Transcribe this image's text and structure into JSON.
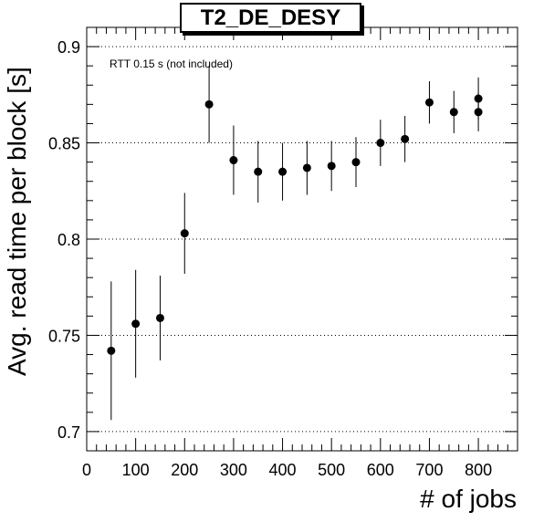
{
  "chart_data": {
    "type": "scatter",
    "title": "T2_DE_DESY",
    "xlabel": "# of jobs",
    "ylabel": "Avg. read time per block [s]",
    "annotation": "RTT 0.15 s (not included)",
    "xlim": [
      0,
      880
    ],
    "ylim": [
      0.69,
      0.91
    ],
    "x_ticks": [
      0,
      100,
      200,
      300,
      400,
      500,
      600,
      700,
      800
    ],
    "x_tick_labels": [
      "0",
      "100",
      "200",
      "300",
      "400",
      "500",
      "600",
      "700",
      "800"
    ],
    "y_ticks": [
      0.7,
      0.75,
      0.8,
      0.85,
      0.9
    ],
    "y_tick_labels": [
      "0.7",
      "0.75",
      "0.8",
      "0.85",
      "0.9"
    ],
    "grid": "horizontal dotted at major y ticks",
    "marker": "filled circle",
    "marker_color": "#000000",
    "points": [
      {
        "x": 50,
        "y": 0.742,
        "err_low": 0.036,
        "err_high": 0.036
      },
      {
        "x": 100,
        "y": 0.756,
        "err_low": 0.028,
        "err_high": 0.028
      },
      {
        "x": 150,
        "y": 0.759,
        "err_low": 0.022,
        "err_high": 0.022
      },
      {
        "x": 200,
        "y": 0.803,
        "err_low": 0.021,
        "err_high": 0.021
      },
      {
        "x": 250,
        "y": 0.87,
        "err_low": 0.02,
        "err_high": 0.02
      },
      {
        "x": 300,
        "y": 0.841,
        "err_low": 0.018,
        "err_high": 0.018
      },
      {
        "x": 350,
        "y": 0.835,
        "err_low": 0.016,
        "err_high": 0.016
      },
      {
        "x": 400,
        "y": 0.835,
        "err_low": 0.015,
        "err_high": 0.015
      },
      {
        "x": 450,
        "y": 0.837,
        "err_low": 0.014,
        "err_high": 0.014
      },
      {
        "x": 500,
        "y": 0.838,
        "err_low": 0.013,
        "err_high": 0.013
      },
      {
        "x": 550,
        "y": 0.84,
        "err_low": 0.013,
        "err_high": 0.013
      },
      {
        "x": 600,
        "y": 0.85,
        "err_low": 0.012,
        "err_high": 0.012
      },
      {
        "x": 650,
        "y": 0.852,
        "err_low": 0.012,
        "err_high": 0.012
      },
      {
        "x": 700,
        "y": 0.871,
        "err_low": 0.011,
        "err_high": 0.011
      },
      {
        "x": 750,
        "y": 0.866,
        "err_low": 0.011,
        "err_high": 0.011
      },
      {
        "x": 800,
        "y": 0.873,
        "err_low": 0.011,
        "err_high": 0.011
      },
      {
        "x": 800,
        "y": 0.866,
        "err_low": 0.01,
        "err_high": 0.01
      }
    ]
  }
}
